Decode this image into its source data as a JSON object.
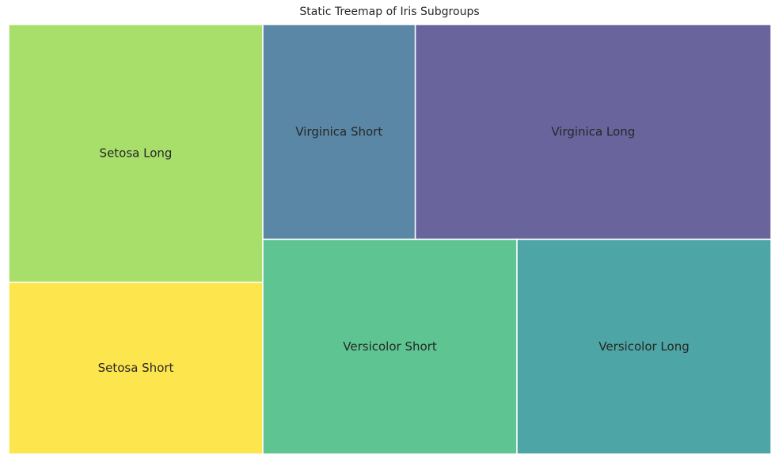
{
  "chart_data": {
    "type": "treemap",
    "title": "Static Treemap of Iris Subgroups",
    "xlabel": "",
    "ylabel": "",
    "axes_visible": false,
    "grid": false,
    "legend": "none",
    "cells": [
      {
        "label": "Setosa Long",
        "value": 30,
        "color": "#a8df6b"
      },
      {
        "label": "Setosa Short",
        "value": 20,
        "color": "#fde64d"
      },
      {
        "label": "Versicolor Short",
        "value": 25,
        "color": "#5ec592"
      },
      {
        "label": "Versicolor Long",
        "value": 25,
        "color": "#4ea5a5"
      },
      {
        "label": "Virginica Short",
        "value": 15,
        "color": "#5a87a5"
      },
      {
        "label": "Virginica Long",
        "value": 35,
        "color": "#6a649c"
      }
    ]
  }
}
